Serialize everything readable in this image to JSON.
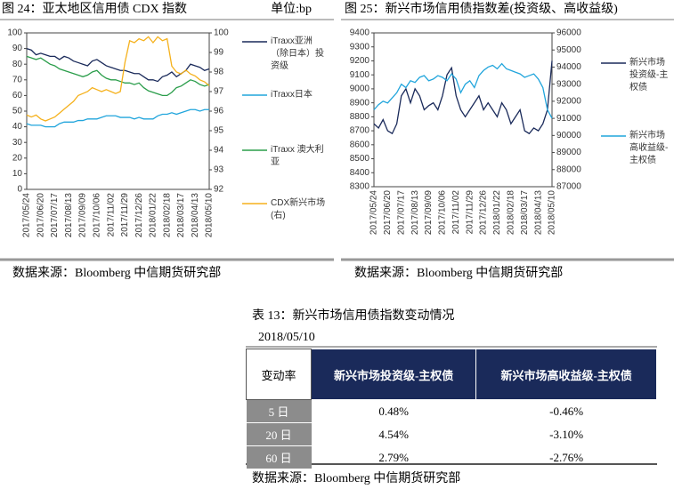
{
  "chart_data": [
    {
      "type": "line",
      "title": "图 24：亚太地区信用债 CDX 指数",
      "unit": "单位:bp",
      "categories": [
        "2017/05/24",
        null,
        null,
        "2017/06/20",
        null,
        null,
        "2017/07/17",
        null,
        null,
        "2017/08/13",
        null,
        null,
        "2017/09/09",
        null,
        null,
        "2017/10/06",
        null,
        null,
        "2017/11/02",
        null,
        null,
        "2017/11/29",
        null,
        null,
        "2017/12/26",
        null,
        null,
        "2018/01/22",
        null,
        null,
        "2018/02/18",
        null,
        null,
        "2018/03/17",
        null,
        null,
        "2018/04/13",
        null,
        null,
        "2018/05/10"
      ],
      "ylim": [
        0,
        100
      ],
      "yticks": [
        0,
        10,
        20,
        30,
        40,
        50,
        60,
        70,
        80,
        90,
        100
      ],
      "y2lim": [
        92,
        100
      ],
      "y2ticks": [
        92,
        93,
        94,
        95,
        96,
        97,
        98,
        99,
        100
      ],
      "series": [
        {
          "name": "iTraxx亚洲（除日本）投资级",
          "color": "#1a2a5a",
          "values": [
            90,
            89,
            86,
            87,
            86,
            85,
            85,
            83,
            85,
            84,
            82,
            81,
            80,
            79,
            82,
            83,
            81,
            79,
            78,
            77,
            76,
            76,
            75,
            74,
            74,
            72,
            70,
            70,
            69,
            72,
            73,
            75,
            72,
            74,
            76,
            80,
            79,
            78,
            76,
            77
          ]
        },
        {
          "name": "iTraxx日本",
          "color": "#21a5dc",
          "values": [
            42,
            41,
            41,
            41,
            40,
            40,
            40,
            42,
            43,
            43,
            43,
            44,
            44,
            45,
            45,
            45,
            46,
            47,
            47,
            47,
            46,
            46,
            46,
            45,
            46,
            45,
            45,
            45,
            47,
            48,
            48,
            49,
            48,
            49,
            50,
            51,
            51,
            50,
            51,
            51
          ]
        },
        {
          "name": "iTraxx 澳大利亚",
          "color": "#2a9d4a",
          "values": [
            85,
            84,
            83,
            84,
            82,
            80,
            79,
            77,
            76,
            75,
            74,
            73,
            72,
            73,
            75,
            76,
            73,
            71,
            70,
            70,
            69,
            68,
            68,
            67,
            68,
            65,
            63,
            62,
            61,
            60,
            60,
            62,
            65,
            66,
            68,
            70,
            69,
            67,
            66,
            67
          ]
        },
        {
          "name": "CDX新兴市场(右)",
          "color": "#f5b11c",
          "axis": "y2",
          "values": [
            95.8,
            95.7,
            95.8,
            95.6,
            95.5,
            95.6,
            95.7,
            95.9,
            96.1,
            96.3,
            96.5,
            96.8,
            96.9,
            97.0,
            97.2,
            97.1,
            97.0,
            97.1,
            97.0,
            96.9,
            97.0,
            98.5,
            99.6,
            99.5,
            99.7,
            99.6,
            99.8,
            99.5,
            99.8,
            99.6,
            99.7,
            98.3,
            98.0,
            97.9,
            98.1,
            97.9,
            97.8,
            97.6,
            97.5,
            97.3
          ]
        }
      ]
    },
    {
      "type": "line",
      "title": "图 25：新兴市场信用债指数差(投资级、高收益级)",
      "categories": [
        "2017/05/24",
        null,
        null,
        "2017/06/20",
        null,
        null,
        "2017/07/17",
        null,
        null,
        "2017/08/13",
        null,
        null,
        "2017/09/09",
        null,
        null,
        "2017/10/06",
        null,
        null,
        "2017/11/02",
        null,
        null,
        "2017/11/29",
        null,
        null,
        "2017/12/26",
        null,
        null,
        "2018/01/22",
        null,
        null,
        "2018/02/18",
        null,
        null,
        "2018/03/17",
        null,
        null,
        "2018/04/13",
        null,
        null,
        "2018/05/10"
      ],
      "ylim": [
        8300,
        9400
      ],
      "yticks": [
        8300,
        8400,
        8500,
        8600,
        8700,
        8800,
        8900,
        9000,
        9100,
        9200,
        9300,
        9400
      ],
      "y2lim": [
        87000,
        96000
      ],
      "y2ticks": [
        87000,
        88000,
        89000,
        90000,
        91000,
        92000,
        93000,
        94000,
        95000,
        96000
      ],
      "series": [
        {
          "name": "新兴市场投资级-主权债",
          "color": "#1a2a5a",
          "values": [
            8750,
            8720,
            8780,
            8700,
            8680,
            8750,
            8950,
            9000,
            8900,
            9000,
            8950,
            8850,
            8880,
            8900,
            8850,
            8950,
            9100,
            9150,
            8950,
            8850,
            8800,
            8850,
            8900,
            8950,
            8850,
            8900,
            8850,
            8800,
            8900,
            8850,
            8750,
            8800,
            8850,
            8700,
            8680,
            8720,
            8700,
            8750,
            8850,
            9200
          ]
        },
        {
          "name": "新兴市场高收益级-主权债",
          "color": "#21a5dc",
          "axis": "y2",
          "values": [
            91500,
            91800,
            92000,
            91900,
            92200,
            92500,
            93000,
            92800,
            93200,
            93100,
            93400,
            93500,
            93200,
            93300,
            93500,
            93400,
            93200,
            93600,
            93300,
            92500,
            93000,
            93200,
            92800,
            93500,
            93800,
            94000,
            94100,
            93900,
            94200,
            93900,
            93800,
            93700,
            93600,
            93400,
            93500,
            93600,
            93300,
            92800,
            91500,
            91000
          ]
        }
      ]
    }
  ],
  "sources": [
    "数据来源：Bloomberg 中信期货研究部",
    "数据来源：Bloomberg 中信期货研究部",
    "数据来源：Bloomberg 中信期货研究部"
  ],
  "table": {
    "title": "表 13：新兴市场信用债指数变动情况",
    "date": "2018/05/10",
    "header": [
      "变动率",
      "新兴市场投资级-主权债",
      "新兴市场高收益级-主权债"
    ],
    "rows": [
      [
        "5 日",
        "0.48%",
        "-0.46%"
      ],
      [
        "20 日",
        "4.54%",
        "-3.10%"
      ],
      [
        "60 日",
        "2.79%",
        "-2.76%"
      ]
    ]
  }
}
